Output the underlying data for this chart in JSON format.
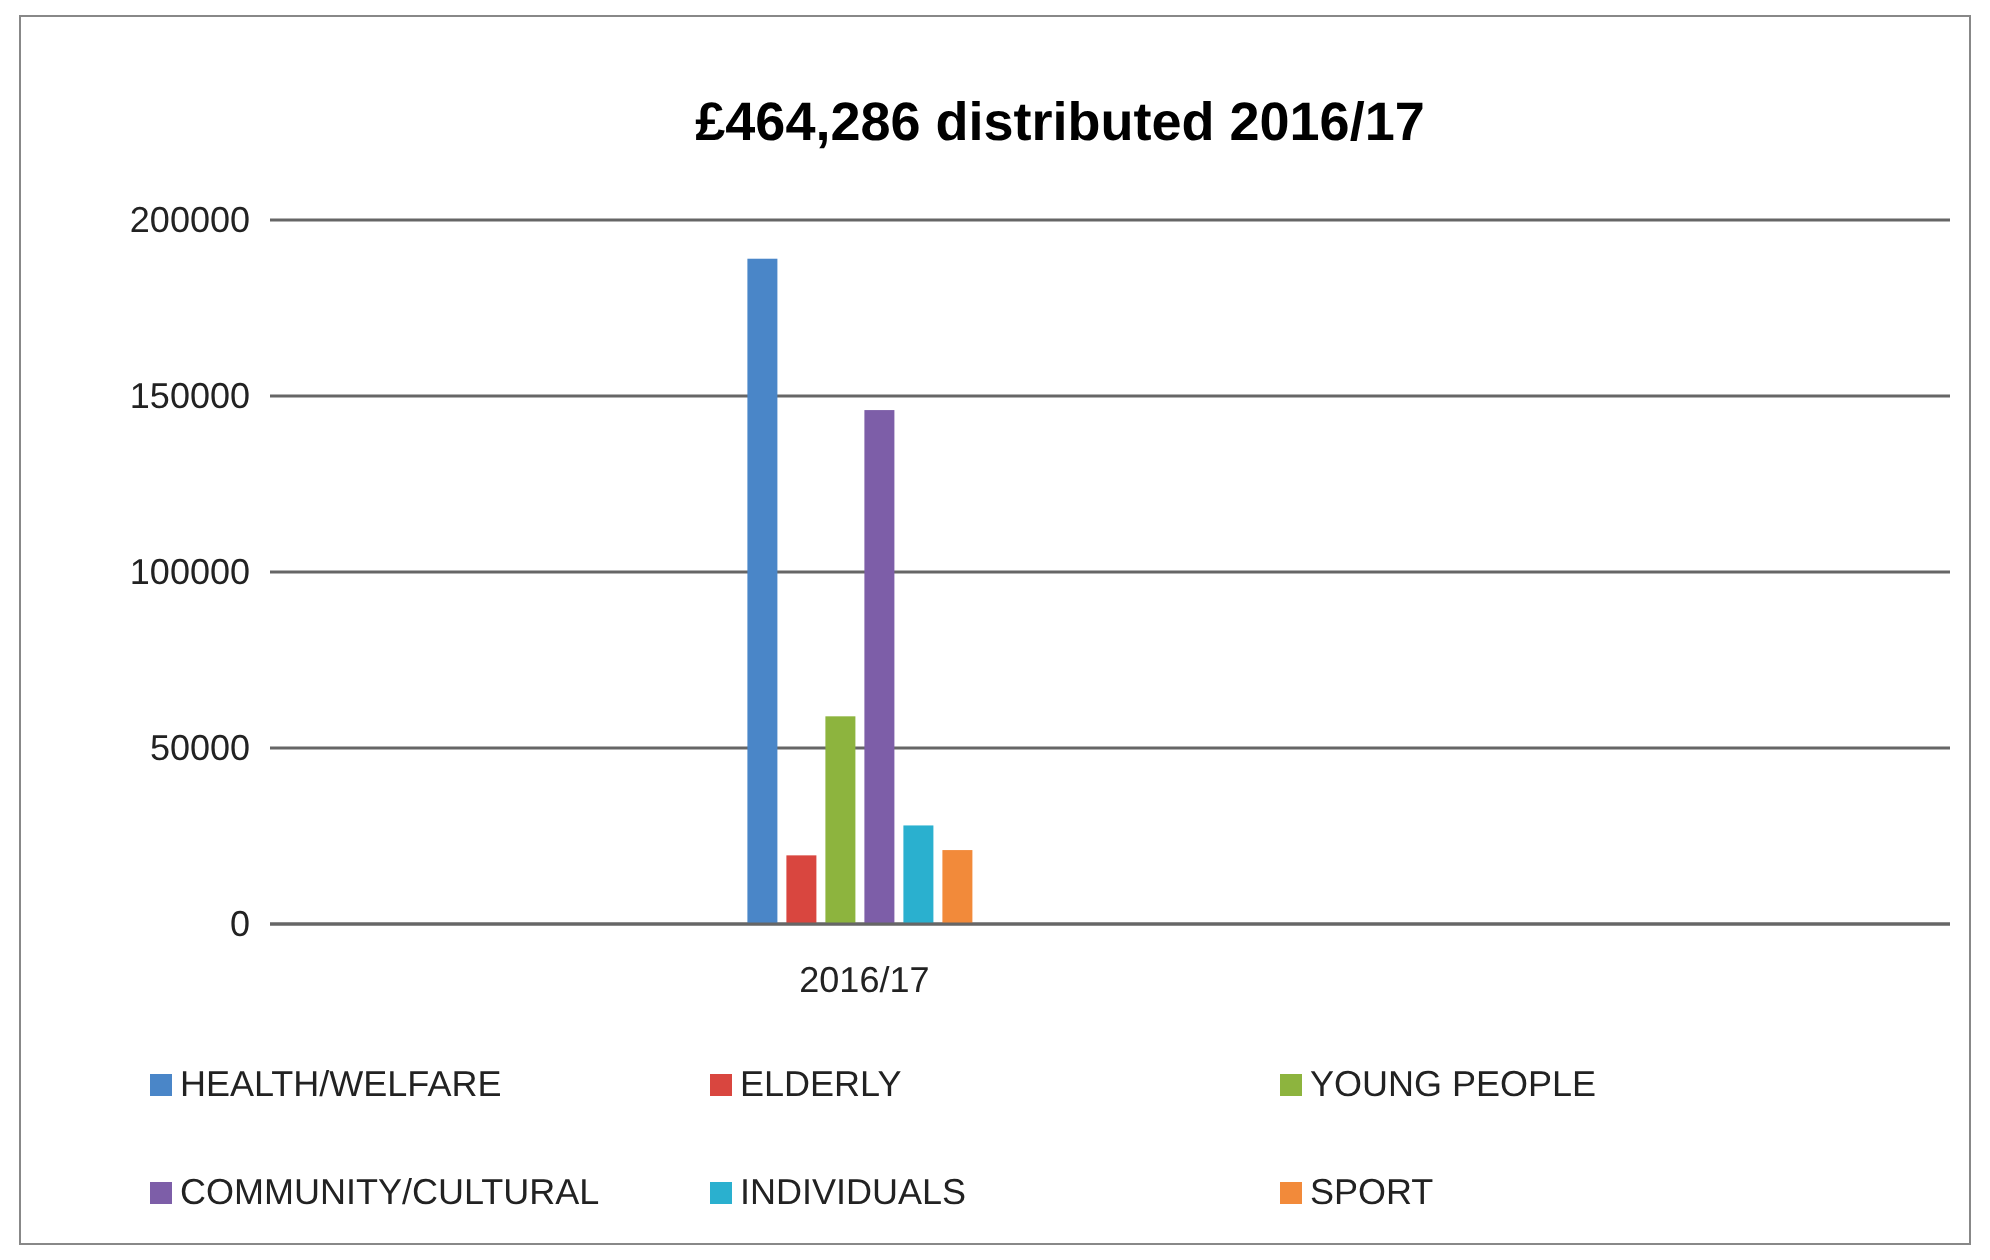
{
  "chart_data": {
    "type": "bar",
    "title": "£464,286 distributed 2016/17",
    "categories": [
      "2016/17"
    ],
    "series": [
      {
        "name": "HEALTH/WELFARE",
        "color": "#4a86c8",
        "values": [
          189000
        ]
      },
      {
        "name": "ELDERLY",
        "color": "#d9463f",
        "values": [
          19500
        ]
      },
      {
        "name": "YOUNG PEOPLE",
        "color": "#8db43e",
        "values": [
          59000
        ]
      },
      {
        "name": "COMMUNITY/CULTURAL",
        "color": "#7d5ea8",
        "values": [
          146000
        ]
      },
      {
        "name": "INDIVIDUALS",
        "color": "#2ab0cf",
        "values": [
          28000
        ]
      },
      {
        "name": "SPORT",
        "color": "#f28a3a",
        "values": [
          21000
        ]
      }
    ],
    "ylim": [
      0,
      200000
    ],
    "yticks": [
      0,
      50000,
      100000,
      150000,
      200000
    ],
    "grid": "y",
    "legend": "bottom"
  }
}
